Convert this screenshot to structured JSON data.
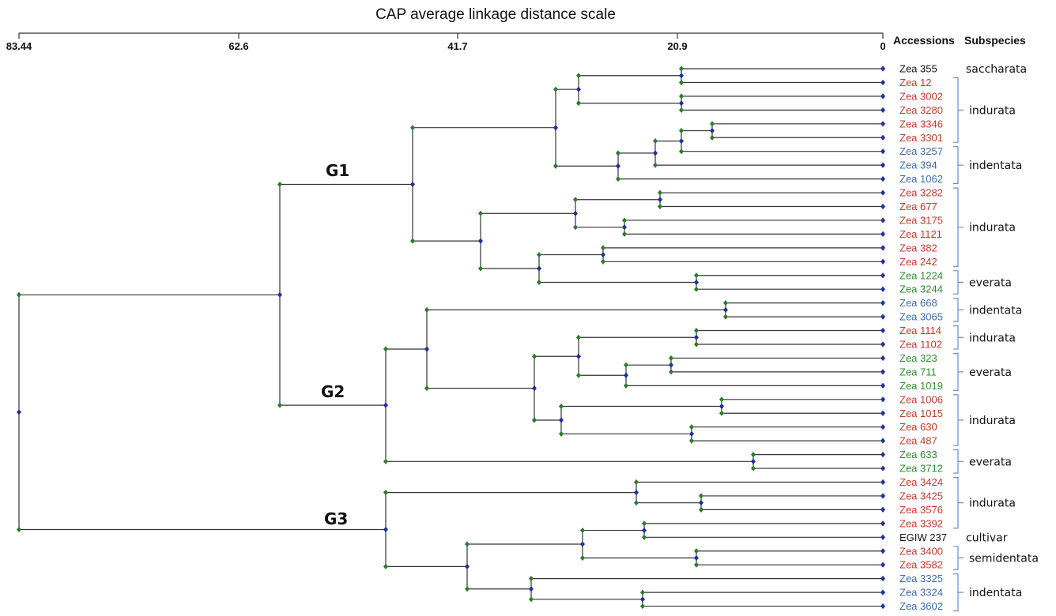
{
  "header": {
    "title": "CAP average linkage distance scale",
    "col_accessions": "Accessions",
    "col_subspecies": "Subspecies"
  },
  "axis": {
    "ticks": [
      "83.44",
      "62.6",
      "41.7",
      "20.9",
      "0"
    ]
  },
  "colors": {
    "red": "#c0392b",
    "blue": "#3b6aa8",
    "green": "#2e8b2e",
    "black": "#111111",
    "node_green": "#2f7a2f",
    "node_blue": "#1f2f9f"
  },
  "groups": [
    {
      "label": "G1"
    },
    {
      "label": "G2"
    },
    {
      "label": "G3"
    }
  ],
  "leaves": [
    {
      "label": "Zea 355",
      "color": "black"
    },
    {
      "label": "Zea 12",
      "color": "red"
    },
    {
      "label": "Zea 3002",
      "color": "red"
    },
    {
      "label": "Zea 3280",
      "color": "red"
    },
    {
      "label": "Zea 3346",
      "color": "red"
    },
    {
      "label": "Zea 3301",
      "color": "red"
    },
    {
      "label": "Zea 3257",
      "color": "blue"
    },
    {
      "label": "Zea 394",
      "color": "blue"
    },
    {
      "label": "Zea 1062",
      "color": "blue"
    },
    {
      "label": "Zea 3282",
      "color": "red"
    },
    {
      "label": "Zea 677",
      "color": "red"
    },
    {
      "label": "Zea 3175",
      "color": "red"
    },
    {
      "label": "Zea 1121",
      "color": "red"
    },
    {
      "label": "Zea 382",
      "color": "red"
    },
    {
      "label": "Zea 242",
      "color": "red"
    },
    {
      "label": "Zea 1224",
      "color": "green"
    },
    {
      "label": "Zea 3244",
      "color": "green"
    },
    {
      "label": "Zea 668",
      "color": "blue"
    },
    {
      "label": "Zea 3065",
      "color": "blue"
    },
    {
      "label": "Zea 1114",
      "color": "red"
    },
    {
      "label": "Zea 1102",
      "color": "red"
    },
    {
      "label": "Zea 323",
      "color": "green"
    },
    {
      "label": "Zea 711",
      "color": "green"
    },
    {
      "label": "Zea 1019",
      "color": "green"
    },
    {
      "label": "Zea 1006",
      "color": "red"
    },
    {
      "label": "Zea 1015",
      "color": "red"
    },
    {
      "label": "Zea 630",
      "color": "red"
    },
    {
      "label": "Zea 487",
      "color": "red"
    },
    {
      "label": "Zea 633",
      "color": "green"
    },
    {
      "label": "Zea 3712",
      "color": "green"
    },
    {
      "label": "Zea 3424",
      "color": "red"
    },
    {
      "label": "Zea 3425",
      "color": "red"
    },
    {
      "label": "Zea 3576",
      "color": "red"
    },
    {
      "label": "Zea 3392",
      "color": "red"
    },
    {
      "label": "EGIW 237",
      "color": "black"
    },
    {
      "label": "Zea 3400",
      "color": "red"
    },
    {
      "label": "Zea 3582",
      "color": "red"
    },
    {
      "label": "Zea 3325",
      "color": "blue"
    },
    {
      "label": "Zea 3324",
      "color": "blue"
    },
    {
      "label": "Zea 3602",
      "color": "blue"
    }
  ],
  "subspecies": [
    {
      "label": "saccharata",
      "from": 0,
      "to": 0,
      "brace": false
    },
    {
      "label": "indurata",
      "from": 1,
      "to": 5,
      "brace": true
    },
    {
      "label": "indentata",
      "from": 6,
      "to": 8,
      "brace": true
    },
    {
      "label": "indurata",
      "from": 9,
      "to": 14,
      "brace": true
    },
    {
      "label": "everata",
      "from": 15,
      "to": 16,
      "brace": true
    },
    {
      "label": "indentata",
      "from": 17,
      "to": 18,
      "brace": true
    },
    {
      "label": "indurata",
      "from": 19,
      "to": 20,
      "brace": true
    },
    {
      "label": "everata",
      "from": 21,
      "to": 23,
      "brace": true
    },
    {
      "label": "indurata",
      "from": 24,
      "to": 27,
      "brace": true
    },
    {
      "label": "everata",
      "from": 28,
      "to": 29,
      "brace": true
    },
    {
      "label": "indurata",
      "from": 30,
      "to": 33,
      "brace": true
    },
    {
      "label": "cultivar",
      "from": 34,
      "to": 34,
      "brace": false
    },
    {
      "label": "semidentata",
      "from": 35,
      "to": 36,
      "brace": true
    },
    {
      "label": "indentata",
      "from": 37,
      "to": 39,
      "brace": true
    }
  ]
}
